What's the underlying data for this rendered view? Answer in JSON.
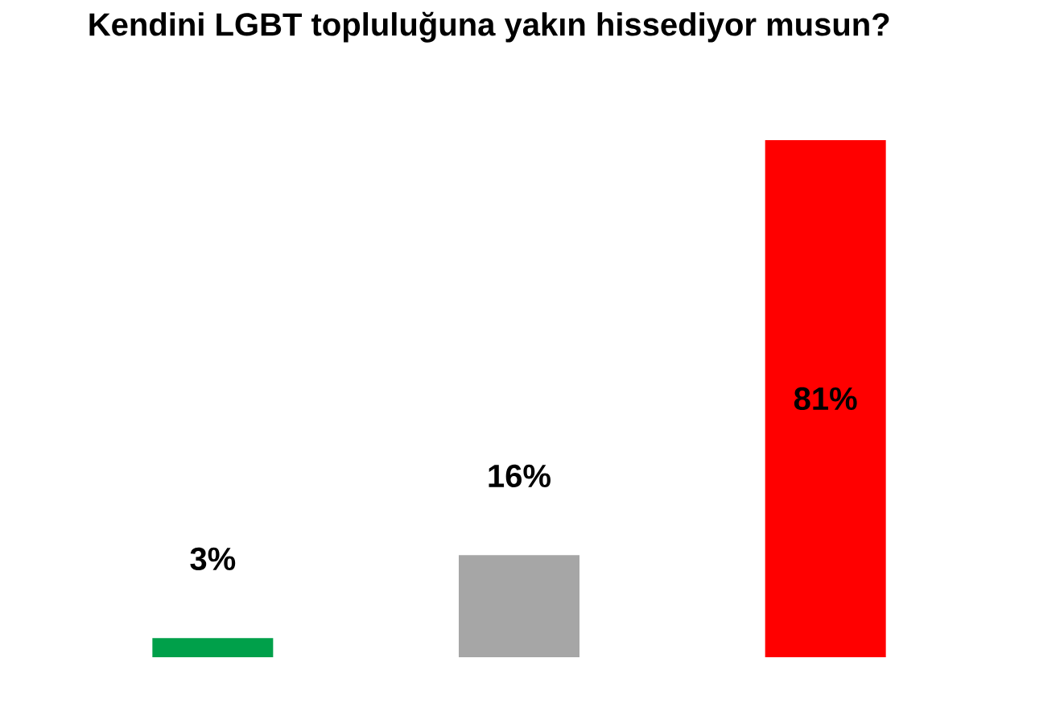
{
  "chart_data": {
    "type": "bar",
    "title": "Kendini LGBT topluluğuna yakın hissediyor musun?",
    "categories": [
      null,
      null,
      null
    ],
    "values": [
      3,
      16,
      81
    ],
    "colors": [
      "#00a04a",
      "#a6a6a6",
      "#ff0000"
    ],
    "data_labels": true,
    "value_labels": [
      "3%",
      "16%",
      "81%"
    ]
  }
}
